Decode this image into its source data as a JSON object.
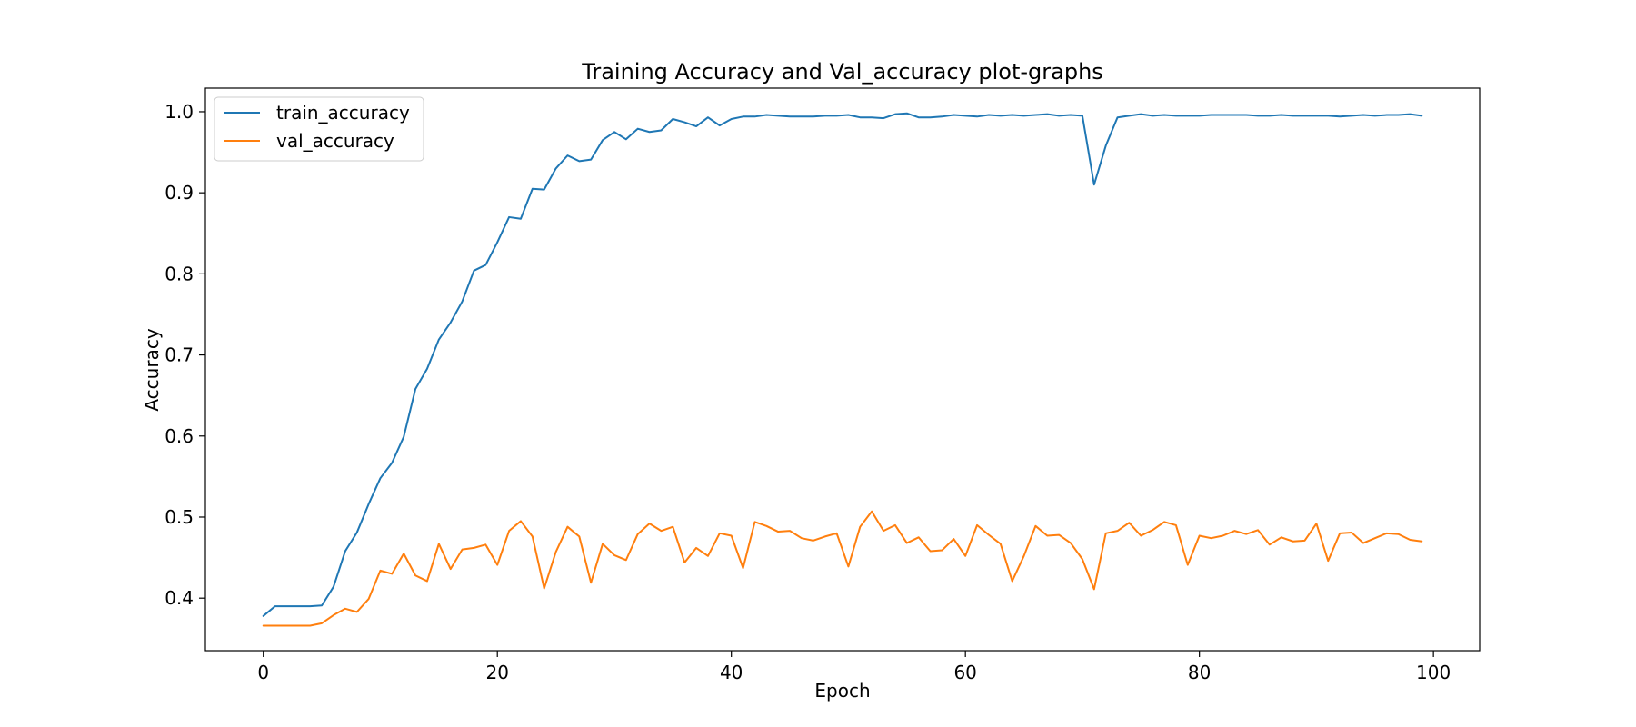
{
  "chart_data": {
    "type": "line",
    "title": "Training Accuracy and Val_accuracy plot-graphs",
    "xlabel": "Epoch",
    "ylabel": "Accuracy",
    "xlim": [
      -4.95,
      103.95
    ],
    "ylim": [
      0.3352,
      1.0291
    ],
    "xticks": [
      0,
      20,
      40,
      60,
      80,
      100
    ],
    "yticks": [
      0.4,
      0.5,
      0.6,
      0.7,
      0.8,
      0.9,
      1.0
    ],
    "grid": false,
    "legend": "upper left",
    "series": [
      {
        "name": "train_accuracy",
        "color": "#1f77b4",
        "values": [
          0.378,
          0.39,
          0.39,
          0.39,
          0.39,
          0.391,
          0.414,
          0.458,
          0.481,
          0.516,
          0.548,
          0.567,
          0.599,
          0.658,
          0.683,
          0.719,
          0.74,
          0.766,
          0.804,
          0.811,
          0.839,
          0.87,
          0.868,
          0.905,
          0.904,
          0.93,
          0.946,
          0.939,
          0.941,
          0.965,
          0.975,
          0.966,
          0.979,
          0.975,
          0.977,
          0.991,
          0.987,
          0.982,
          0.993,
          0.983,
          0.991,
          0.994,
          0.994,
          0.996,
          0.995,
          0.994,
          0.994,
          0.994,
          0.995,
          0.995,
          0.996,
          0.993,
          0.993,
          0.992,
          0.997,
          0.998,
          0.993,
          0.993,
          0.994,
          0.996,
          0.995,
          0.994,
          0.996,
          0.995,
          0.996,
          0.995,
          0.996,
          0.997,
          0.995,
          0.996,
          0.995,
          0.91,
          0.958,
          0.993,
          0.995,
          0.997,
          0.995,
          0.996,
          0.995,
          0.995,
          0.995,
          0.996,
          0.996,
          0.996,
          0.996,
          0.995,
          0.995,
          0.996,
          0.995,
          0.995,
          0.995,
          0.995,
          0.994,
          0.995,
          0.996,
          0.995,
          0.996,
          0.996,
          0.997,
          0.995
        ]
      },
      {
        "name": "val_accuracy",
        "color": "#ff7f0e",
        "values": [
          0.366,
          0.366,
          0.366,
          0.366,
          0.366,
          0.369,
          0.379,
          0.387,
          0.383,
          0.399,
          0.434,
          0.43,
          0.455,
          0.428,
          0.421,
          0.467,
          0.436,
          0.46,
          0.462,
          0.466,
          0.441,
          0.483,
          0.495,
          0.476,
          0.412,
          0.457,
          0.488,
          0.476,
          0.419,
          0.467,
          0.453,
          0.447,
          0.479,
          0.492,
          0.483,
          0.488,
          0.444,
          0.462,
          0.452,
          0.48,
          0.477,
          0.437,
          0.494,
          0.489,
          0.482,
          0.483,
          0.474,
          0.471,
          0.476,
          0.48,
          0.439,
          0.488,
          0.507,
          0.483,
          0.49,
          0.468,
          0.475,
          0.458,
          0.459,
          0.473,
          0.452,
          0.49,
          0.478,
          0.467,
          0.421,
          0.452,
          0.489,
          0.477,
          0.478,
          0.468,
          0.448,
          0.411,
          0.48,
          0.483,
          0.493,
          0.477,
          0.484,
          0.494,
          0.49,
          0.441,
          0.477,
          0.474,
          0.477,
          0.483,
          0.479,
          0.484,
          0.466,
          0.475,
          0.47,
          0.471,
          0.492,
          0.446,
          0.48,
          0.481,
          0.468,
          0.474,
          0.48,
          0.479,
          0.472,
          0.47
        ]
      }
    ]
  }
}
